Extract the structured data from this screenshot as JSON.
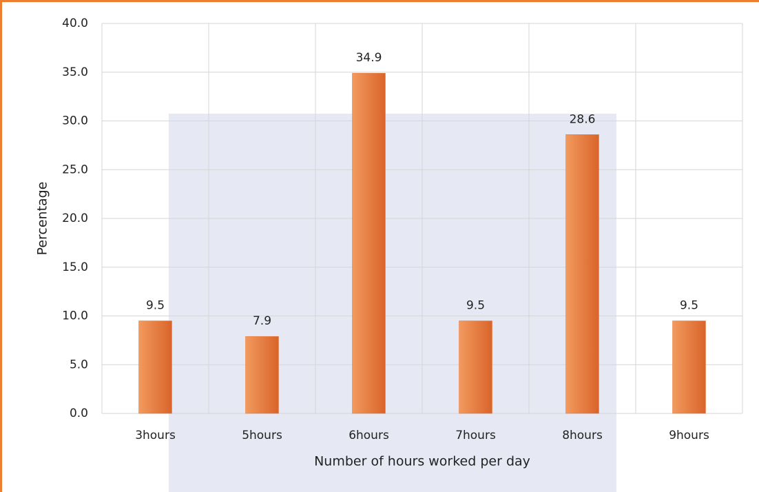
{
  "chart_data": {
    "type": "bar",
    "x_label": "Number of hours worked per day",
    "y_label": "Percentage",
    "categories": [
      "3hours",
      "5hours",
      "6hours",
      "7hours",
      "8hours",
      "9hours"
    ],
    "values": [
      9.5,
      7.9,
      34.9,
      9.5,
      28.6,
      9.5
    ],
    "color": "#e8783c",
    "ylim": [
      0,
      40
    ],
    "yticks": [
      {
        "value": 0,
        "label": "0.0"
      },
      {
        "value": 5,
        "label": "5.0"
      },
      {
        "value": 10,
        "label": "10.0"
      },
      {
        "value": 15,
        "label": "15.0"
      },
      {
        "value": 20,
        "label": "20.0"
      },
      {
        "value": 25,
        "label": "25.0"
      },
      {
        "value": 30,
        "label": "30.0"
      },
      {
        "value": 35,
        "label": "35.0"
      },
      {
        "value": 40,
        "label": "40.0"
      }
    ],
    "grid": true
  }
}
